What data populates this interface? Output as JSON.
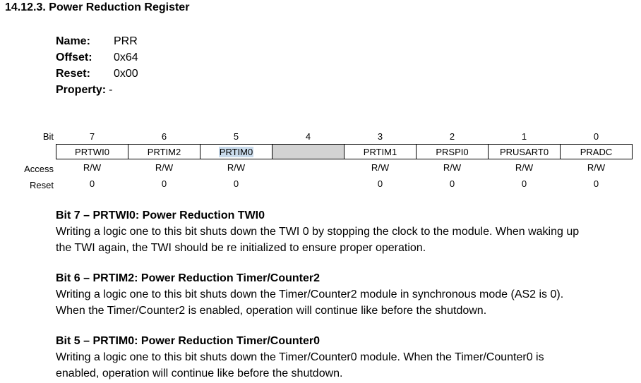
{
  "heading": "14.12.3. Power Reduction Register",
  "register_props": [
    {
      "key": "Name:",
      "value": "PRR"
    },
    {
      "key": "Offset:",
      "value": "0x64"
    },
    {
      "key": "Reset:",
      "value": "0x00"
    },
    {
      "key": "Property:",
      "value": "-"
    }
  ],
  "table": {
    "row_labels": {
      "bit": "Bit",
      "access": "Access",
      "reset": "Reset"
    },
    "bits": [
      {
        "num": "7",
        "field": "PRTWI0",
        "access": "R/W",
        "reset": "0"
      },
      {
        "num": "6",
        "field": "PRTIM2",
        "access": "R/W",
        "reset": "0"
      },
      {
        "num": "5",
        "field": "PRTIM0",
        "access": "R/W",
        "reset": "0"
      },
      {
        "num": "4",
        "field": "",
        "access": "",
        "reset": ""
      },
      {
        "num": "3",
        "field": "PRTIM1",
        "access": "R/W",
        "reset": "0"
      },
      {
        "num": "2",
        "field": "PRSPI0",
        "access": "R/W",
        "reset": "0"
      },
      {
        "num": "1",
        "field": "PRUSART0",
        "access": "R/W",
        "reset": "0"
      },
      {
        "num": "0",
        "field": "PRADC",
        "access": "R/W",
        "reset": "0"
      }
    ]
  },
  "descriptions": [
    {
      "title": "Bit 7 – PRTWI0: Power Reduction TWI0",
      "lines": [
        "Writing a logic one to this bit shuts down the TWI 0 by stopping the clock to the module. When waking up",
        "the TWI again, the TWI should be re initialized to ensure proper operation."
      ]
    },
    {
      "title": "Bit 6 – PRTIM2: Power Reduction Timer/Counter2",
      "lines": [
        "Writing a logic one to this bit shuts down the Timer/Counter2 module in synchronous mode (AS2 is 0).",
        "When the Timer/Counter2 is enabled, operation will continue like before the shutdown."
      ]
    },
    {
      "title": "Bit 5 – PRTIM0: Power Reduction Timer/Counter0",
      "lines": [
        "Writing a logic one to this bit shuts down the Timer/Counter0 module. When the Timer/Counter0 is",
        "enabled, operation will continue like before the shutdown."
      ]
    }
  ]
}
